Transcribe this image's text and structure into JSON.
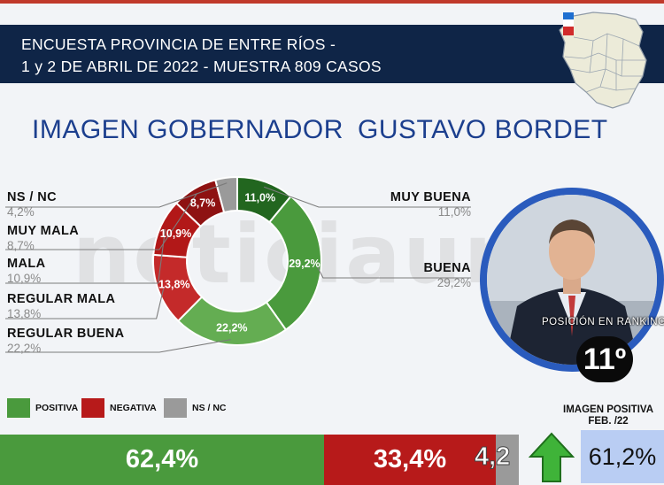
{
  "header": {
    "line1": "ENCUESTA PROVINCIA DE ENTRE RÍOS -",
    "line2": "1 y 2 DE ABRIL DE 2022  - MUESTRA 809 CASOS"
  },
  "title": {
    "part1": "IMAGEN GOBERNADOR",
    "part2": "GUSTAVO BORDET"
  },
  "watermark": "noticiauno",
  "chart_data": [
    {
      "type": "pie",
      "donut": true,
      "categories": [
        "MUY BUENA",
        "BUENA",
        "REGULAR BUENA",
        "REGULAR MALA",
        "MALA",
        "MUY MALA",
        "NS / NC"
      ],
      "values": [
        11.0,
        29.2,
        22.2,
        13.8,
        10.9,
        8.7,
        4.2
      ],
      "value_labels": [
        "11,0%",
        "29,2%",
        "22,2%",
        "13,8%",
        "10,9%",
        "8,7%",
        "4,2%"
      ],
      "legend_values": [
        "11,0%",
        "29,2%",
        "22,2%",
        "13,8%",
        "10,9%",
        "8,7%",
        "4,2%"
      ],
      "colors": [
        "#22661f",
        "#4a9a3d",
        "#64ad52",
        "#c42a2a",
        "#b21818",
        "#8e1212",
        "#9a9a9a"
      ]
    },
    {
      "type": "bar",
      "stacked": true,
      "orientation": "horizontal",
      "categories": [
        "POSITIVA",
        "NEGATIVA",
        "NS / NC"
      ],
      "values": [
        62.4,
        33.4,
        4.2
      ],
      "value_labels": [
        "62,4%",
        "33,4%",
        "4,2"
      ],
      "colors": [
        "#4a9a3d",
        "#b71a1a",
        "#9a9a9a"
      ]
    }
  ],
  "legend": [
    {
      "label": "POSITIVA",
      "color": "#4a9a3d"
    },
    {
      "label": "NEGATIVA",
      "color": "#b71a1a"
    },
    {
      "label": "NS / NC",
      "color": "#9a9a9a"
    }
  ],
  "ranking": {
    "label": "POSICIÓN EN RANKING",
    "value": "11º"
  },
  "previous": {
    "title_line1": "IMAGEN POSITIVA",
    "title_line2": "FEB. /22",
    "value": "61,2%",
    "trend": "up-arrow-icon"
  }
}
